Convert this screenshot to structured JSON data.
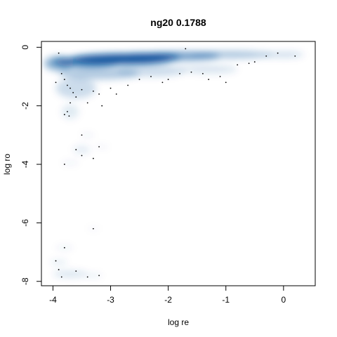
{
  "chart_data": {
    "type": "scatter",
    "title": "ng20 0.1788",
    "xlabel": "log re",
    "ylabel": "log ro",
    "xlim": [
      -4.2,
      0.55
    ],
    "ylim": [
      -8.15,
      0.2
    ],
    "x_ticks": [
      -4,
      -3,
      -2,
      -1,
      0
    ],
    "x_tick_labels": [
      "-4",
      "-3",
      "-2",
      "-1",
      "0"
    ],
    "y_ticks": [
      0,
      -2,
      -4,
      -6,
      -8
    ],
    "y_tick_labels": [
      "0",
      "-2",
      "-4",
      "-6",
      "-8"
    ],
    "density_color": "#08519c",
    "grid": false,
    "legend": "none",
    "points": [
      [
        -3.9,
        -0.2
      ],
      [
        -3.85,
        -0.9
      ],
      [
        -3.8,
        -1.1
      ],
      [
        -3.95,
        -1.2
      ],
      [
        -3.75,
        -1.3
      ],
      [
        -3.7,
        -1.4
      ],
      [
        -3.65,
        -1.55
      ],
      [
        -3.6,
        -1.7
      ],
      [
        -3.7,
        -1.9
      ],
      [
        -3.75,
        -2.2
      ],
      [
        -3.8,
        -2.3
      ],
      [
        -3.72,
        -2.35
      ],
      [
        -3.5,
        -1.45
      ],
      [
        -3.3,
        -1.5
      ],
      [
        -3.4,
        -1.9
      ],
      [
        -3.2,
        -1.6
      ],
      [
        -3.15,
        -2.0
      ],
      [
        -3.0,
        -1.4
      ],
      [
        -2.9,
        -1.6
      ],
      [
        -2.7,
        -1.3
      ],
      [
        -2.5,
        -1.1
      ],
      [
        -2.3,
        -1.0
      ],
      [
        -2.1,
        -1.2
      ],
      [
        -2.0,
        -1.1
      ],
      [
        -1.8,
        -0.9
      ],
      [
        -1.6,
        -0.85
      ],
      [
        -1.4,
        -0.9
      ],
      [
        -1.3,
        -1.1
      ],
      [
        -1.1,
        -1.0
      ],
      [
        -1.0,
        -1.2
      ],
      [
        -0.8,
        -0.6
      ],
      [
        -0.6,
        -0.55
      ],
      [
        -0.5,
        -0.5
      ],
      [
        -0.3,
        -0.3
      ],
      [
        -0.1,
        -0.2
      ],
      [
        0.2,
        -0.3
      ],
      [
        -1.7,
        -0.05
      ],
      [
        -3.5,
        -3.0
      ],
      [
        -3.6,
        -3.5
      ],
      [
        -3.5,
        -3.7
      ],
      [
        -3.2,
        -3.4
      ],
      [
        -3.8,
        -4.0
      ],
      [
        -3.3,
        -3.8
      ],
      [
        -3.3,
        -6.2
      ],
      [
        -3.8,
        -6.85
      ],
      [
        -3.95,
        -7.3
      ],
      [
        -3.9,
        -7.6
      ],
      [
        -3.85,
        -7.85
      ],
      [
        -3.6,
        -7.65
      ],
      [
        -3.2,
        -7.8
      ],
      [
        -3.4,
        -7.85
      ]
    ],
    "density_blobs": [
      [
        -2.8,
        -0.4,
        0.9,
        0.18,
        0.95
      ],
      [
        -2.4,
        -0.35,
        0.6,
        0.15,
        0.9
      ],
      [
        -3.4,
        -0.5,
        0.6,
        0.18,
        0.7
      ],
      [
        -1.8,
        -0.3,
        0.7,
        0.15,
        0.55
      ],
      [
        -0.9,
        -0.25,
        0.7,
        0.12,
        0.35
      ],
      [
        0.0,
        -0.25,
        0.35,
        0.1,
        0.2
      ],
      [
        -3.9,
        -0.55,
        0.25,
        0.25,
        0.45
      ],
      [
        -3.2,
        -0.9,
        0.7,
        0.2,
        0.3
      ],
      [
        -2.3,
        -0.8,
        0.6,
        0.2,
        0.2
      ],
      [
        -1.3,
        -0.75,
        0.5,
        0.15,
        0.15
      ],
      [
        -3.6,
        -1.4,
        0.35,
        0.35,
        0.2
      ],
      [
        -3.7,
        -2.2,
        0.15,
        0.25,
        0.12
      ],
      [
        -3.4,
        -3.0,
        0.12,
        0.05,
        0.1
      ],
      [
        -3.5,
        -3.5,
        0.15,
        0.15,
        0.1
      ],
      [
        -3.15,
        -3.4,
        0.12,
        0.05,
        0.08
      ],
      [
        -3.7,
        -3.95,
        0.15,
        0.05,
        0.1
      ],
      [
        -3.3,
        -6.2,
        0.1,
        0.04,
        0.08
      ],
      [
        -3.8,
        -6.85,
        0.15,
        0.05,
        0.12
      ],
      [
        -3.9,
        -7.35,
        0.15,
        0.08,
        0.12
      ],
      [
        -3.7,
        -7.75,
        0.3,
        0.12,
        0.15
      ],
      [
        -3.3,
        -7.8,
        0.15,
        0.06,
        0.12
      ]
    ]
  }
}
